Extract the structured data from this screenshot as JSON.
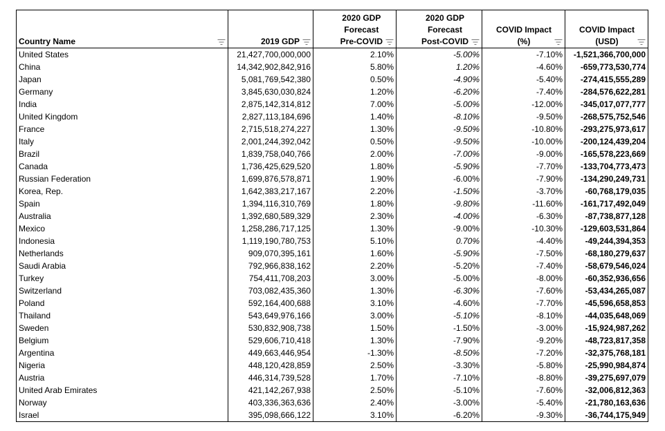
{
  "headers": {
    "country": "Country Name",
    "gdp2019": "2019 GDP",
    "pre_line1": "2020 GDP",
    "pre_line2": "Forecast",
    "pre_line3": "Pre-COVID",
    "post_line1": "2020 GDP",
    "post_line2": "Forecast",
    "post_line3": "Post-COVID",
    "impact_pct_line1": "COVID Impact",
    "impact_pct_line2": "(%)",
    "impact_usd_line1": "COVID Impact",
    "impact_usd_line2": "(USD)"
  },
  "rows": [
    {
      "country": "United States",
      "gdp2019": "21,427,700,000,000",
      "pre": "2.10%",
      "post": "-5.00%",
      "impact_pct": "-7.10%",
      "impact_usd": "-1,521,366,700,000"
    },
    {
      "country": "China",
      "gdp2019": "14,342,902,842,916",
      "pre": "5.80%",
      "post": "1.20%",
      "impact_pct": "-4.60%",
      "impact_usd": "-659,773,530,774"
    },
    {
      "country": "Japan",
      "gdp2019": "5,081,769,542,380",
      "pre": "0.50%",
      "post": "-4.90%",
      "impact_pct": "-5.40%",
      "impact_usd": "-274,415,555,289"
    },
    {
      "country": "Germany",
      "gdp2019": "3,845,630,030,824",
      "pre": "1.20%",
      "post": "-6.20%",
      "impact_pct": "-7.40%",
      "impact_usd": "-284,576,622,281"
    },
    {
      "country": "India",
      "gdp2019": "2,875,142,314,812",
      "pre": "7.00%",
      "post": "-5.00%",
      "impact_pct": "-12.00%",
      "impact_usd": "-345,017,077,777"
    },
    {
      "country": "United Kingdom",
      "gdp2019": "2,827,113,184,696",
      "pre": "1.40%",
      "post": "-8.10%",
      "impact_pct": "-9.50%",
      "impact_usd": "-268,575,752,546"
    },
    {
      "country": "France",
      "gdp2019": "2,715,518,274,227",
      "pre": "1.30%",
      "post": "-9.50%",
      "impact_pct": "-10.80%",
      "impact_usd": "-293,275,973,617"
    },
    {
      "country": "Italy",
      "gdp2019": "2,001,244,392,042",
      "pre": "0.50%",
      "post": "-9.50%",
      "impact_pct": "-10.00%",
      "impact_usd": "-200,124,439,204"
    },
    {
      "country": "Brazil",
      "gdp2019": "1,839,758,040,766",
      "pre": "2.00%",
      "post": "-7.00%",
      "impact_pct": "-9.00%",
      "impact_usd": "-165,578,223,669"
    },
    {
      "country": "Canada",
      "gdp2019": "1,736,425,629,520",
      "pre": "1.80%",
      "post": "-5.90%",
      "impact_pct": "-7.70%",
      "impact_usd": "-133,704,773,473"
    },
    {
      "country": "Russian Federation",
      "gdp2019": "1,699,876,578,871",
      "pre": "1.90%",
      "post": "-6.00%",
      "impact_pct": "-7.90%",
      "impact_usd": "-134,290,249,731"
    },
    {
      "country": "Korea, Rep.",
      "gdp2019": "1,642,383,217,167",
      "pre": "2.20%",
      "post": "-1.50%",
      "impact_pct": "-3.70%",
      "impact_usd": "-60,768,179,035"
    },
    {
      "country": "Spain",
      "gdp2019": "1,394,116,310,769",
      "pre": "1.80%",
      "post": "-9.80%",
      "impact_pct": "-11.60%",
      "impact_usd": "-161,717,492,049"
    },
    {
      "country": "Australia",
      "gdp2019": "1,392,680,589,329",
      "pre": "2.30%",
      "post": "-4.00%",
      "impact_pct": "-6.30%",
      "impact_usd": "-87,738,877,128"
    },
    {
      "country": "Mexico",
      "gdp2019": "1,258,286,717,125",
      "pre": "1.30%",
      "post": "-9.00%",
      "impact_pct": "-10.30%",
      "impact_usd": "-129,603,531,864"
    },
    {
      "country": "Indonesia",
      "gdp2019": "1,119,190,780,753",
      "pre": "5.10%",
      "post": "0.70%",
      "impact_pct": "-4.40%",
      "impact_usd": "-49,244,394,353"
    },
    {
      "country": "Netherlands",
      "gdp2019": "909,070,395,161",
      "pre": "1.60%",
      "post": "-5.90%",
      "impact_pct": "-7.50%",
      "impact_usd": "-68,180,279,637"
    },
    {
      "country": "Saudi Arabia",
      "gdp2019": "792,966,838,162",
      "pre": "2.20%",
      "post": "-5.20%",
      "impact_pct": "-7.40%",
      "impact_usd": "-58,679,546,024"
    },
    {
      "country": "Turkey",
      "gdp2019": "754,411,708,203",
      "pre": "3.00%",
      "post": "-5.00%",
      "impact_pct": "-8.00%",
      "impact_usd": "-60,352,936,656"
    },
    {
      "country": "Switzerland",
      "gdp2019": "703,082,435,360",
      "pre": "1.30%",
      "post": "-6.30%",
      "impact_pct": "-7.60%",
      "impact_usd": "-53,434,265,087"
    },
    {
      "country": "Poland",
      "gdp2019": "592,164,400,688",
      "pre": "3.10%",
      "post": "-4.60%",
      "impact_pct": "-7.70%",
      "impact_usd": "-45,596,658,853"
    },
    {
      "country": "Thailand",
      "gdp2019": "543,649,976,166",
      "pre": "3.00%",
      "post": "-5.10%",
      "impact_pct": "-8.10%",
      "impact_usd": "-44,035,648,069"
    },
    {
      "country": "Sweden",
      "gdp2019": "530,832,908,738",
      "pre": "1.50%",
      "post": "-1.50%",
      "impact_pct": "-3.00%",
      "impact_usd": "-15,924,987,262"
    },
    {
      "country": "Belgium",
      "gdp2019": "529,606,710,418",
      "pre": "1.30%",
      "post": "-7.90%",
      "impact_pct": "-9.20%",
      "impact_usd": "-48,723,817,358"
    },
    {
      "country": "Argentina",
      "gdp2019": "449,663,446,954",
      "pre": "-1.30%",
      "post": "-8.50%",
      "impact_pct": "-7.20%",
      "impact_usd": "-32,375,768,181"
    },
    {
      "country": "Nigeria",
      "gdp2019": "448,120,428,859",
      "pre": "2.50%",
      "post": "-3.30%",
      "impact_pct": "-5.80%",
      "impact_usd": "-25,990,984,874"
    },
    {
      "country": "Austria",
      "gdp2019": "446,314,739,528",
      "pre": "1.70%",
      "post": "-7.10%",
      "impact_pct": "-8.80%",
      "impact_usd": "-39,275,697,079"
    },
    {
      "country": "United Arab Emirates",
      "gdp2019": "421,142,267,938",
      "pre": "2.50%",
      "post": "-5.10%",
      "impact_pct": "-7.60%",
      "impact_usd": "-32,006,812,363"
    },
    {
      "country": "Norway",
      "gdp2019": "403,336,363,636",
      "pre": "2.40%",
      "post": "-3.00%",
      "impact_pct": "-5.40%",
      "impact_usd": "-21,780,163,636"
    },
    {
      "country": "Israel",
      "gdp2019": "395,098,666,122",
      "pre": "3.10%",
      "post": "-6.20%",
      "impact_pct": "-9.30%",
      "impact_usd": "-36,744,175,949"
    }
  ],
  "italic_post_rows": [
    0,
    1,
    2,
    3,
    4,
    5,
    6,
    7,
    8,
    9,
    11,
    12,
    13,
    15,
    16,
    19,
    21,
    24
  ],
  "icons": {
    "filter": "filter-dropdown-icon"
  }
}
